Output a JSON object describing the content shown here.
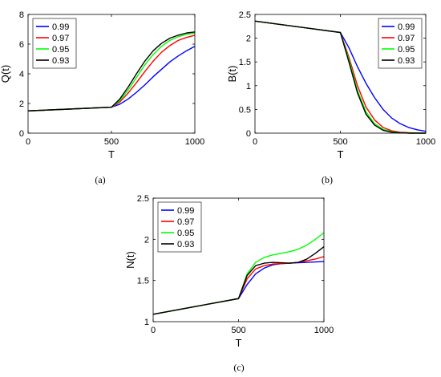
{
  "chart_data": [
    {
      "id": "a",
      "type": "line",
      "caption": "(a)",
      "xlabel": "T",
      "ylabel": "Q(t)",
      "xlim": [
        0,
        1000
      ],
      "ylim": [
        0,
        8
      ],
      "xticks": [
        0,
        500,
        1000
      ],
      "yticks": [
        0,
        2,
        4,
        6,
        8
      ],
      "legend_position": "top-left",
      "series": [
        {
          "name": "0.99",
          "color": "#0000ff",
          "x": [
            0,
            500,
            550,
            600,
            650,
            700,
            750,
            800,
            850,
            900,
            950,
            1000
          ],
          "y": [
            1.5,
            1.75,
            1.95,
            2.3,
            2.75,
            3.25,
            3.8,
            4.3,
            4.8,
            5.2,
            5.55,
            5.85
          ]
        },
        {
          "name": "0.97",
          "color": "#ff0000",
          "x": [
            0,
            500,
            550,
            600,
            650,
            700,
            750,
            800,
            850,
            900,
            950,
            1000
          ],
          "y": [
            1.5,
            1.75,
            2.1,
            2.7,
            3.4,
            4.15,
            4.85,
            5.45,
            5.9,
            6.25,
            6.45,
            6.6
          ]
        },
        {
          "name": "0.95",
          "color": "#00ff00",
          "x": [
            0,
            500,
            550,
            600,
            650,
            700,
            750,
            800,
            850,
            900,
            950,
            1000
          ],
          "y": [
            1.5,
            1.75,
            2.2,
            2.9,
            3.75,
            4.6,
            5.3,
            5.85,
            6.25,
            6.5,
            6.65,
            6.75
          ]
        },
        {
          "name": "0.93",
          "color": "#000000",
          "x": [
            0,
            500,
            550,
            600,
            650,
            700,
            750,
            800,
            850,
            900,
            950,
            1000
          ],
          "y": [
            1.5,
            1.75,
            2.3,
            3.1,
            4.0,
            4.85,
            5.55,
            6.05,
            6.4,
            6.6,
            6.75,
            6.82
          ]
        }
      ]
    },
    {
      "id": "b",
      "type": "line",
      "caption": "(b)",
      "xlabel": "T",
      "ylabel": "B(t)",
      "xlim": [
        0,
        1000
      ],
      "ylim": [
        0,
        2.5
      ],
      "xticks": [
        0,
        500,
        1000
      ],
      "yticks": [
        0,
        0.5,
        1,
        1.5,
        2,
        2.5
      ],
      "legend_position": "top-right",
      "series": [
        {
          "name": "0.99",
          "color": "#0000ff",
          "x": [
            0,
            500,
            550,
            600,
            650,
            700,
            750,
            800,
            850,
            900,
            950,
            1000
          ],
          "y": [
            2.36,
            2.12,
            1.8,
            1.4,
            1.05,
            0.75,
            0.5,
            0.32,
            0.2,
            0.12,
            0.07,
            0.04
          ]
        },
        {
          "name": "0.97",
          "color": "#ff0000",
          "x": [
            0,
            500,
            550,
            600,
            650,
            700,
            750,
            800,
            850,
            900,
            950,
            1000
          ],
          "y": [
            2.36,
            2.12,
            1.6,
            1.0,
            0.55,
            0.28,
            0.12,
            0.05,
            0.02,
            0.01,
            0.005,
            0.0
          ]
        },
        {
          "name": "0.95",
          "color": "#00ff00",
          "x": [
            0,
            500,
            550,
            600,
            650,
            700,
            750,
            800,
            850,
            900,
            950,
            1000
          ],
          "y": [
            2.36,
            2.12,
            1.55,
            0.9,
            0.45,
            0.2,
            0.08,
            0.03,
            0.01,
            0.0,
            0.0,
            0.0
          ]
        },
        {
          "name": "0.93",
          "color": "#000000",
          "x": [
            0,
            500,
            550,
            600,
            650,
            700,
            750,
            800,
            850,
            900,
            950,
            1000
          ],
          "y": [
            2.36,
            2.12,
            1.5,
            0.85,
            0.4,
            0.17,
            0.06,
            0.02,
            0.005,
            0.0,
            0.0,
            0.0
          ]
        }
      ]
    },
    {
      "id": "c",
      "type": "line",
      "caption": "(c)",
      "xlabel": "T",
      "ylabel": "N(t)",
      "xlim": [
        0,
        1000
      ],
      "ylim": [
        1,
        2.5
      ],
      "xticks": [
        0,
        500,
        1000
      ],
      "yticks": [
        1,
        1.5,
        2,
        2.5
      ],
      "legend_position": "top-left",
      "series": [
        {
          "name": "0.99",
          "color": "#0000ff",
          "x": [
            0,
            500,
            550,
            600,
            650,
            700,
            750,
            800,
            850,
            900,
            950,
            1000
          ],
          "y": [
            1.09,
            1.28,
            1.45,
            1.58,
            1.65,
            1.69,
            1.705,
            1.71,
            1.715,
            1.72,
            1.725,
            1.73
          ]
        },
        {
          "name": "0.97",
          "color": "#ff0000",
          "x": [
            0,
            500,
            550,
            600,
            650,
            700,
            750,
            800,
            850,
            900,
            950,
            1000
          ],
          "y": [
            1.09,
            1.28,
            1.52,
            1.64,
            1.68,
            1.7,
            1.705,
            1.71,
            1.72,
            1.74,
            1.76,
            1.79
          ]
        },
        {
          "name": "0.95",
          "color": "#00ff00",
          "x": [
            0,
            500,
            550,
            600,
            650,
            700,
            750,
            800,
            850,
            900,
            950,
            1000
          ],
          "y": [
            1.09,
            1.28,
            1.58,
            1.72,
            1.78,
            1.81,
            1.83,
            1.85,
            1.88,
            1.93,
            2.0,
            2.08
          ]
        },
        {
          "name": "0.93",
          "color": "#000000",
          "x": [
            0,
            500,
            550,
            600,
            650,
            700,
            750,
            800,
            850,
            900,
            950,
            1000
          ],
          "y": [
            1.09,
            1.28,
            1.56,
            1.68,
            1.71,
            1.72,
            1.715,
            1.71,
            1.72,
            1.76,
            1.83,
            1.91
          ]
        }
      ]
    }
  ]
}
